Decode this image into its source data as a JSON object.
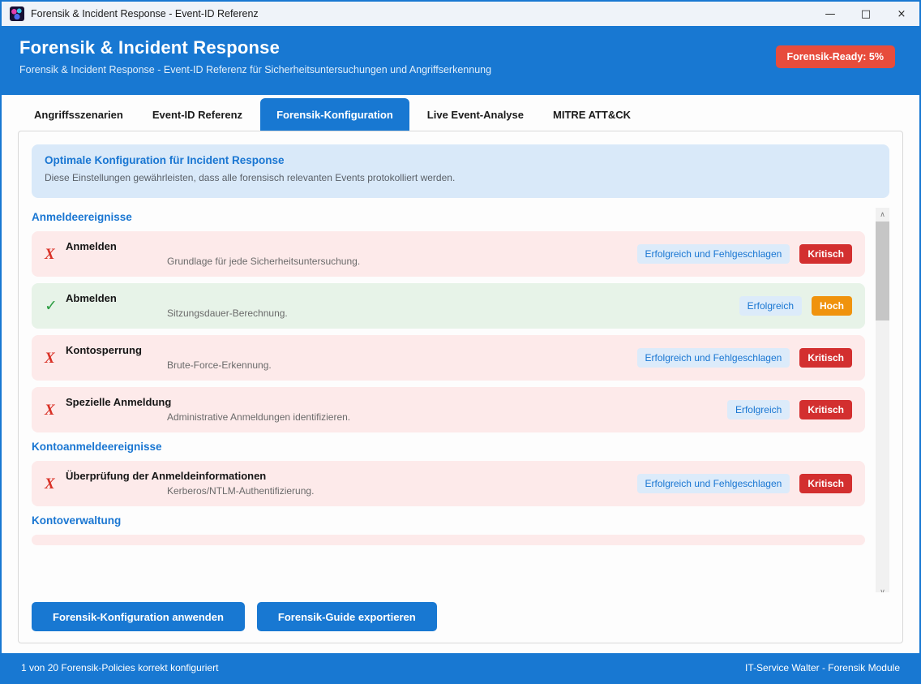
{
  "window": {
    "title": "Forensik & Incident Response - Event-ID Referenz",
    "minimize_glyph": "—",
    "maximize_glyph": "□",
    "close_glyph": "×"
  },
  "header": {
    "title": "Forensik & Incident Response",
    "subtitle": "Forensik & Incident Response - Event-ID Referenz für Sicherheitsuntersuchungen und Angriffserkennung",
    "ready_badge": "Forensik-Ready: 5%"
  },
  "tabs": [
    {
      "label": "Angriffsszenarien",
      "active": false
    },
    {
      "label": "Event-ID Referenz",
      "active": false
    },
    {
      "label": "Forensik-Konfiguration",
      "active": true
    },
    {
      "label": "Live Event-Analyse",
      "active": false
    },
    {
      "label": "MITRE ATT&CK",
      "active": false
    }
  ],
  "info_box": {
    "title": "Optimale Konfiguration für Incident Response",
    "text": "Diese Einstellungen gewährleisten, dass alle forensisch relevanten Events protokolliert werden."
  },
  "sections": [
    {
      "title": "Anmeldeereignisse",
      "items": [
        {
          "name": "Anmelden",
          "description": "Grundlage für jede Sicherheitsuntersuchung.",
          "audit": "Erfolgreich und Fehlgeschlagen",
          "severity": "Kritisch",
          "status": "fail"
        },
        {
          "name": "Abmelden",
          "description": "Sitzungsdauer-Berechnung.",
          "audit": "Erfolgreich",
          "severity": "Hoch",
          "status": "ok"
        },
        {
          "name": "Kontosperrung",
          "description": "Brute-Force-Erkennung.",
          "audit": "Erfolgreich und Fehlgeschlagen",
          "severity": "Kritisch",
          "status": "fail"
        },
        {
          "name": "Spezielle Anmeldung",
          "description": "Administrative Anmeldungen identifizieren.",
          "audit": "Erfolgreich",
          "severity": "Kritisch",
          "status": "fail"
        }
      ]
    },
    {
      "title": "Kontoanmeldeereignisse",
      "items": [
        {
          "name": "Überprüfung der Anmeldeinformationen",
          "description": "Kerberos/NTLM-Authentifizierung.",
          "audit": "Erfolgreich und Fehlgeschlagen",
          "severity": "Kritisch",
          "status": "fail"
        }
      ]
    },
    {
      "title": "Kontoverwaltung",
      "items": [
        {
          "partial": true,
          "status": "fail"
        }
      ]
    }
  ],
  "status_icons": {
    "fail": "X",
    "ok": "✓"
  },
  "buttons": {
    "apply": "Forensik-Konfiguration anwenden",
    "export": "Forensik-Guide exportieren"
  },
  "footer": {
    "left": "1 von 20 Forensik-Policies korrekt konfiguriert",
    "right": "IT-Service Walter - Forensik Module"
  },
  "colors": {
    "accent": "#1878d2",
    "ready_badge": "#e74c3c",
    "critical": "#d32f2f",
    "high": "#f0930d",
    "row_fail_bg": "#fdeaea",
    "row_ok_bg": "#e7f3e8",
    "audit_pill_bg": "#dcebfa"
  }
}
